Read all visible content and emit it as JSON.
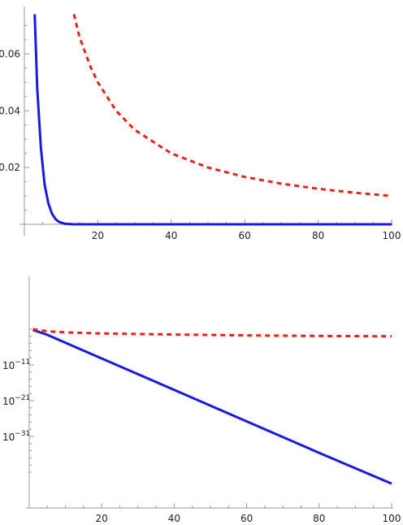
{
  "chart_data": [
    {
      "type": "line",
      "scale": "linear",
      "xlim": [
        0,
        100
      ],
      "ylim": [
        0,
        0.075
      ],
      "x_ticks": [
        20,
        40,
        60,
        80,
        100
      ],
      "x_tick_labels": [
        "20",
        "40",
        "60",
        "80",
        "100"
      ],
      "y_ticks": [
        0.02,
        0.04,
        0.06
      ],
      "y_tick_labels": [
        "0.02",
        "0.04",
        "0.06"
      ],
      "grid": false,
      "series": [
        {
          "style": "solid",
          "color": "#1a1adf",
          "x": [
            2.8,
            3.5,
            4.5,
            5.5,
            6.5,
            7.5,
            8.5,
            9.5,
            11,
            13,
            20,
            40,
            60,
            80,
            100
          ],
          "y": [
            0.074,
            0.048,
            0.027,
            0.014,
            0.0075,
            0.0038,
            0.0018,
            0.0008,
            0.0002,
            2e-05,
            0,
            0,
            0,
            0,
            0
          ]
        },
        {
          "style": "dashed",
          "color": "#e8221c",
          "x": [
            13.5,
            15,
            18,
            20,
            25,
            30,
            40,
            50,
            60,
            70,
            80,
            90,
            100
          ],
          "y": [
            0.074,
            0.066,
            0.0555,
            0.05,
            0.04,
            0.0333,
            0.025,
            0.02,
            0.0167,
            0.0143,
            0.0125,
            0.0111,
            0.01
          ]
        }
      ]
    },
    {
      "type": "line",
      "scale": "log",
      "xlim": [
        0,
        100
      ],
      "ylim_exponent": [
        -42,
        0
      ],
      "x_ticks": [
        20,
        40,
        60,
        80,
        100
      ],
      "x_tick_labels": [
        "20",
        "40",
        "60",
        "80",
        "100"
      ],
      "y_tick_labels": [
        {
          "base": "10",
          "exp": "−11",
          "value_exponent": -11
        },
        {
          "base": "10",
          "exp": "−21",
          "value_exponent": -21
        },
        {
          "base": "10",
          "exp": "−31",
          "value_exponent": -31
        }
      ],
      "grid": false,
      "series": [
        {
          "style": "solid",
          "color": "#1a1adf",
          "x": [
            1,
            5,
            10,
            20,
            40,
            60,
            80,
            100
          ],
          "y_exponent": [
            -1.2,
            -2.6,
            -4.8,
            -9.2,
            -18.0,
            -26.8,
            -35.6,
            -44.2
          ]
        },
        {
          "style": "dashed",
          "color": "#e8221c",
          "x": [
            1,
            5,
            10,
            20,
            40,
            60,
            80,
            100
          ],
          "y_exponent": [
            -1.0,
            -1.6,
            -1.9,
            -2.2,
            -2.5,
            -2.75,
            -2.9,
            -3.0
          ]
        }
      ]
    }
  ]
}
